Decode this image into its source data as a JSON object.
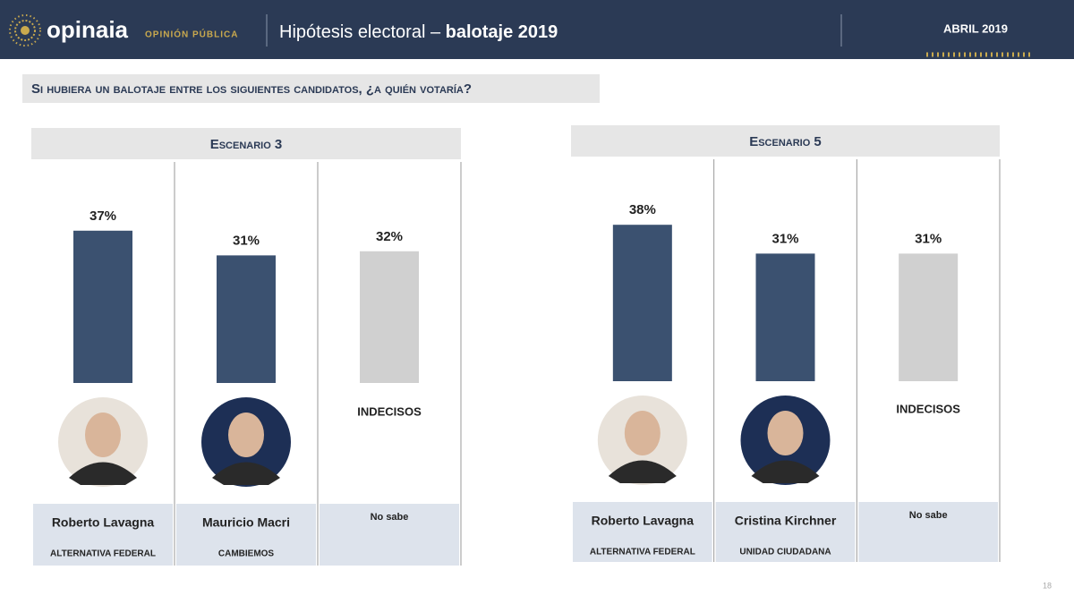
{
  "header": {
    "brand": "opinaia",
    "brand_sub": "OPINIÓN PÚBLICA",
    "title": "Hipótesis electoral – ",
    "title_bold": "balotaje 2019",
    "date": "ABRIL 2019"
  },
  "question": "Si hubiera un balotaje entre los siguientes candidatos, ¿a quién votaría?",
  "page_number": "18",
  "chart_data": [
    {
      "type": "bar",
      "title": "Escenario 3",
      "categories": [
        "Roberto Lavagna",
        "Mauricio Macri",
        "No sabe"
      ],
      "parties": [
        "ALTERNATIVA FEDERAL",
        "CAMBIEMOS"
      ],
      "undecided_label": "INDECISOS",
      "values": [
        37,
        31,
        32
      ],
      "value_labels": [
        "37%",
        "31%",
        "32%"
      ],
      "colors": [
        "#3b5170",
        "#3b5170",
        "#d0d0d0"
      ]
    },
    {
      "type": "bar",
      "title": "Escenario 5",
      "categories": [
        "Roberto Lavagna",
        "Cristina Kirchner",
        "No sabe"
      ],
      "parties": [
        "ALTERNATIVA FEDERAL",
        "UNIDAD CIUDADANA"
      ],
      "undecided_label": "INDECISOS",
      "values": [
        38,
        31,
        31
      ],
      "value_labels": [
        "38%",
        "31%",
        "31%"
      ],
      "colors": [
        "#3b5170",
        "#3b5170",
        "#d0d0d0"
      ]
    }
  ]
}
